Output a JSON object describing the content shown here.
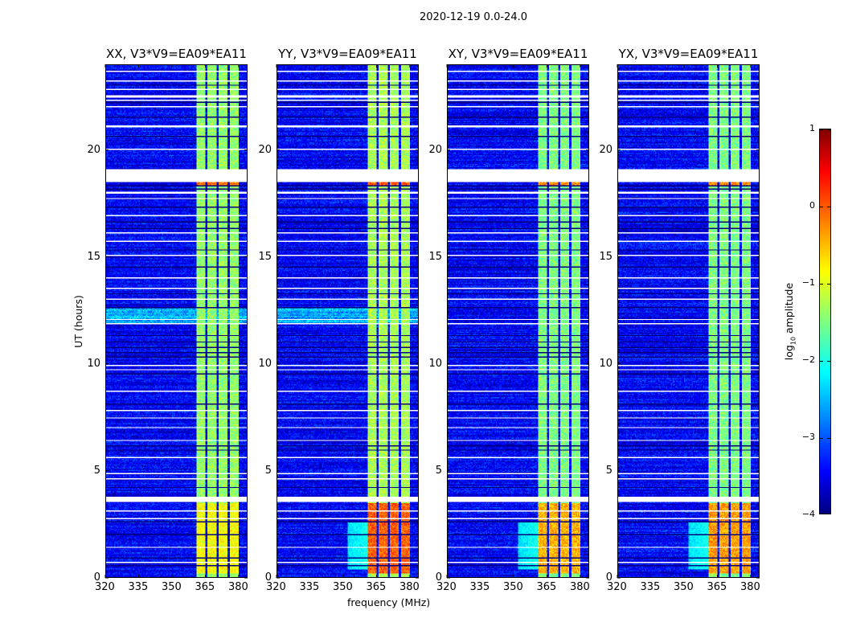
{
  "chart_data": {
    "type": "heatmap",
    "suptitle": "2020-12-19 0.0-24.0",
    "xlabel": "frequency (MHz)",
    "ylabel": "UT (hours)",
    "xlim": [
      320,
      384
    ],
    "ylim": [
      0,
      24
    ],
    "xticks": [
      "320",
      "335",
      "350",
      "365",
      "380"
    ],
    "xtick_values": [
      320,
      335,
      350,
      365,
      380
    ],
    "yticks": [
      "0",
      "5",
      "10",
      "15",
      "20"
    ],
    "ytick_values": [
      0,
      5,
      10,
      15,
      20
    ],
    "panels": [
      {
        "title": "XX, V3*V9=EA09*EA11",
        "band_level": -1.4,
        "low_hours_level": -0.9,
        "halo": false
      },
      {
        "title": "YY, V3*V9=EA09*EA11",
        "band_level": -1.3,
        "low_hours_level": -0.1,
        "halo": true
      },
      {
        "title": "XY, V3*V9=EA09*EA11",
        "band_level": -1.5,
        "low_hours_level": -0.5,
        "halo": true
      },
      {
        "title": "YX, V3*V9=EA09*EA11",
        "band_level": -1.5,
        "low_hours_level": -0.4,
        "halo": true
      }
    ],
    "background_level": -3.4,
    "band_mhz": [
      361,
      380
    ],
    "subband_gaps_mhz": [
      365.5,
      370.5,
      375.3
    ],
    "strong_hours": [
      0.2,
      3.5
    ],
    "flagged_hours": [
      [
        23.65,
        23.7
      ],
      [
        23.2,
        23.25
      ],
      [
        22.8,
        22.85
      ],
      [
        22.45,
        22.55
      ],
      [
        22.3,
        22.35
      ],
      [
        22.0,
        22.05
      ],
      [
        21.05,
        21.15
      ],
      [
        20.0,
        20.05
      ],
      [
        18.5,
        19.1
      ],
      [
        17.95,
        18.05
      ],
      [
        17.7,
        17.75
      ],
      [
        16.9,
        16.95
      ],
      [
        16.1,
        16.15
      ],
      [
        15.7,
        15.75
      ],
      [
        15.05,
        15.1
      ],
      [
        14.0,
        14.05
      ],
      [
        13.5,
        13.55
      ],
      [
        13.0,
        13.05
      ],
      [
        12.05,
        12.1
      ],
      [
        11.85,
        11.9
      ],
      [
        9.9,
        9.95
      ],
      [
        9.7,
        9.75
      ],
      [
        8.7,
        8.75
      ],
      [
        7.8,
        7.85
      ],
      [
        7.45,
        7.5
      ],
      [
        7.0,
        7.05
      ],
      [
        6.4,
        6.45
      ],
      [
        5.6,
        5.65
      ],
      [
        4.84,
        4.89
      ],
      [
        4.58,
        4.63
      ],
      [
        3.55,
        3.8
      ],
      [
        3.1,
        3.15
      ],
      [
        2.74,
        2.79
      ],
      [
        1.42,
        1.47
      ],
      [
        0.71,
        0.76
      ]
    ],
    "dark_hours": [
      [
        23.0,
        23.05
      ],
      [
        22.2,
        22.25
      ],
      [
        21.5,
        21.55
      ],
      [
        20.6,
        20.65
      ],
      [
        18.15,
        18.2
      ],
      [
        18.3,
        18.35
      ],
      [
        17.3,
        17.35
      ],
      [
        16.6,
        16.65
      ],
      [
        16.3,
        16.35
      ],
      [
        15.3,
        15.35
      ],
      [
        14.5,
        14.55
      ],
      [
        13.25,
        13.3
      ],
      [
        12.6,
        12.65
      ],
      [
        11.3,
        11.35
      ],
      [
        11.0,
        11.05
      ],
      [
        10.75,
        10.8
      ],
      [
        10.5,
        10.55
      ],
      [
        10.3,
        10.35
      ],
      [
        9.5,
        9.55
      ],
      [
        8.1,
        8.15
      ],
      [
        6.15,
        6.2
      ],
      [
        5.95,
        6.0
      ],
      [
        4.2,
        4.25
      ],
      [
        2.6,
        2.65
      ],
      [
        2.0,
        2.05
      ],
      [
        0.9,
        0.95
      ],
      [
        0.55,
        0.6
      ]
    ],
    "colorbar": {
      "label": "log",
      "label_sub": "10",
      "label_rest": " amplitude",
      "ticks": [
        "1",
        "0",
        "−1",
        "−2",
        "−3",
        "−4"
      ],
      "tick_values": [
        1,
        0,
        -1,
        -2,
        -3,
        -4
      ],
      "range": [
        -4,
        1
      ],
      "colormap": "jet"
    }
  }
}
